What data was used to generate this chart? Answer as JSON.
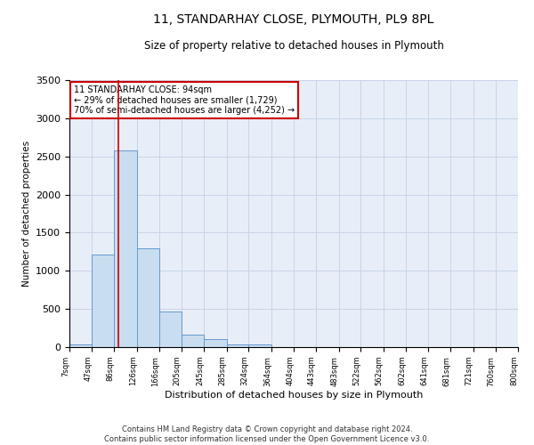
{
  "title": "11, STANDARHAY CLOSE, PLYMOUTH, PL9 8PL",
  "subtitle": "Size of property relative to detached houses in Plymouth",
  "xlabel": "Distribution of detached houses by size in Plymouth",
  "ylabel": "Number of detached properties",
  "bar_color": "#c9ddf0",
  "bar_edge_color": "#6699cc",
  "grid_color": "#c8d4e8",
  "background_color": "#e8eef8",
  "annotation_box_color": "#cc0000",
  "annotation_line_color": "#cc0000",
  "property_line_x": 94,
  "annotation_text_line1": "11 STANDARHAY CLOSE: 94sqm",
  "annotation_text_line2": "← 29% of detached houses are smaller (1,729)",
  "annotation_text_line3": "70% of semi-detached houses are larger (4,252) →",
  "footnote1": "Contains HM Land Registry data © Crown copyright and database right 2024.",
  "footnote2": "Contains public sector information licensed under the Open Government Licence v3.0.",
  "bins": [
    7,
    47,
    86,
    126,
    166,
    205,
    245,
    285,
    324,
    364,
    404,
    443,
    483,
    522,
    562,
    602,
    641,
    681,
    721,
    760,
    800
  ],
  "counts": [
    30,
    1210,
    2580,
    1300,
    470,
    165,
    110,
    30,
    30,
    5,
    0,
    0,
    0,
    0,
    0,
    0,
    0,
    0,
    0,
    0
  ],
  "ylim": [
    0,
    3500
  ],
  "yticks": [
    0,
    500,
    1000,
    1500,
    2000,
    2500,
    3000,
    3500
  ]
}
